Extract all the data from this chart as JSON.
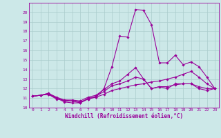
{
  "bg_color": "#cce8e8",
  "grid_color": "#aacccc",
  "line_color": "#990099",
  "xlabel": "Windchill (Refroidissement éolien,°C)",
  "xlim": [
    -0.5,
    23.5
  ],
  "ylim": [
    10,
    21
  ],
  "yticks": [
    10,
    11,
    12,
    13,
    14,
    15,
    16,
    17,
    18,
    19,
    20
  ],
  "xticks": [
    0,
    1,
    2,
    3,
    4,
    5,
    6,
    7,
    8,
    9,
    10,
    11,
    12,
    13,
    14,
    15,
    16,
    17,
    18,
    19,
    20,
    21,
    22,
    23
  ],
  "series": [
    [
      11.2,
      11.3,
      11.4,
      10.9,
      10.8,
      10.7,
      10.5,
      11.0,
      11.1,
      11.4,
      11.8,
      12.0,
      12.2,
      12.4,
      12.5,
      12.7,
      12.8,
      13.0,
      13.2,
      13.5,
      13.8,
      13.2,
      12.5,
      12.0
    ],
    [
      11.2,
      11.3,
      11.4,
      11.0,
      10.7,
      10.7,
      10.6,
      10.9,
      11.2,
      11.7,
      12.3,
      12.5,
      12.8,
      13.2,
      13.0,
      12.0,
      12.2,
      12.2,
      12.4,
      12.5,
      12.5,
      12.2,
      12.0,
      12.0
    ],
    [
      11.2,
      11.3,
      11.5,
      11.0,
      10.6,
      10.5,
      10.5,
      10.9,
      11.1,
      12.0,
      14.3,
      17.5,
      17.4,
      20.3,
      20.2,
      18.7,
      14.7,
      14.7,
      15.5,
      14.5,
      14.8,
      14.3,
      13.2,
      12.0
    ],
    [
      11.2,
      11.3,
      11.5,
      11.1,
      10.8,
      10.8,
      10.7,
      11.1,
      11.3,
      11.9,
      12.5,
      12.8,
      13.5,
      14.2,
      13.0,
      12.0,
      12.2,
      12.0,
      12.5,
      12.5,
      12.5,
      12.0,
      11.8,
      12.0
    ]
  ]
}
